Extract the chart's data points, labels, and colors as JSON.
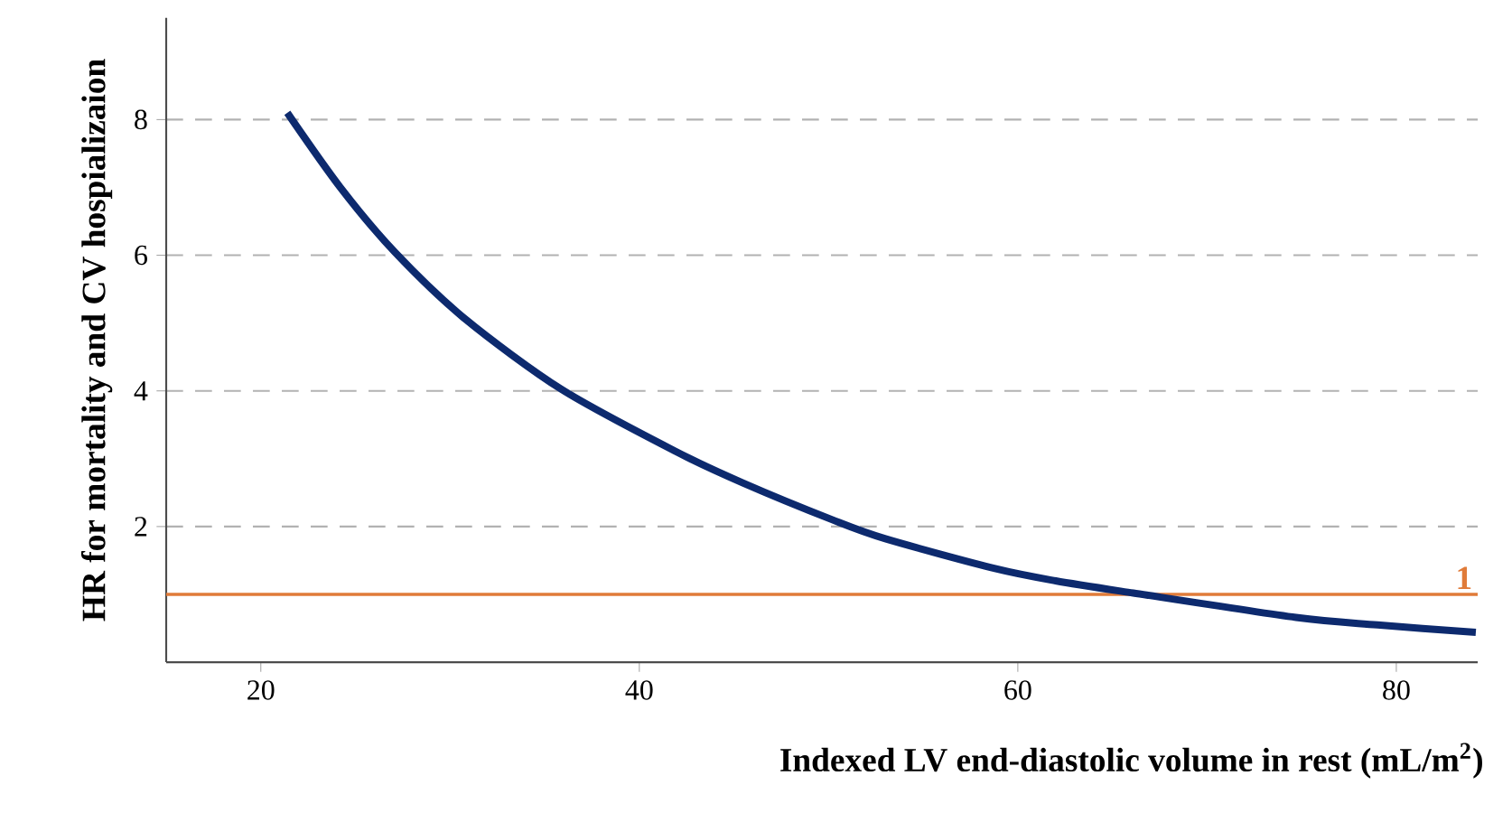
{
  "chart_data": {
    "type": "line",
    "xlabel": "Indexed LV end-diastolic volume in rest (mL/m$^{2}$)",
    "ylabel": "HR for mortality and CV hospializaion",
    "x": [
      21.4,
      24.2,
      27.1,
      30.8,
      35.9,
      41.9,
      45.5,
      50.2,
      53.0,
      58.8,
      62.0,
      66.1,
      74.7,
      79.0,
      84.2
    ],
    "series": [
      {
        "color": "#0d2a6e",
        "values": [
          8.1,
          7.0,
          6.04,
          5.06,
          4.02,
          3.11,
          2.64,
          2.1,
          1.82,
          1.38,
          1.2,
          1.02,
          0.66,
          0.55,
          0.44
        ]
      }
    ],
    "xlim": [
      15,
      84.3
    ],
    "ylim": [
      0,
      9.5
    ],
    "xticks": [
      20,
      40,
      60,
      80
    ],
    "yticks": [
      2,
      4,
      6,
      8
    ],
    "grid": "y",
    "line_style": "solid",
    "marker": "none",
    "ref_lines": [
      {
        "axis": "y",
        "value": 1,
        "label": "1",
        "color": "#e07b39"
      }
    ]
  }
}
